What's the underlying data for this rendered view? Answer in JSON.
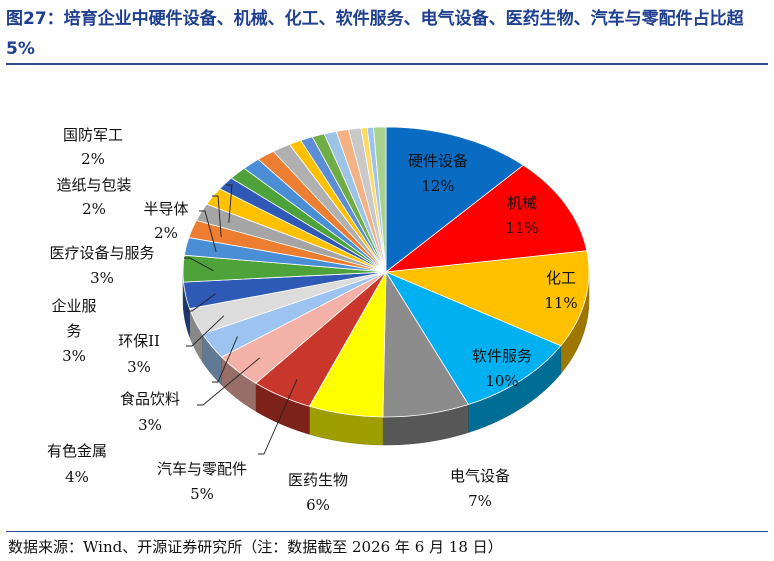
{
  "header": {
    "title": "图27：培育企业中硬件设备、机械、化工、软件服务、电气设备、医药生物、汽车与零配件占比超 5%"
  },
  "footer": {
    "source": "数据来源：Wind、开源证券研究所（注：数据截至 2026 年 6 月 18 日）"
  },
  "chart_data": {
    "type": "pie",
    "title": "",
    "style": "3d",
    "labeled_slices": [
      {
        "name": "硬件设备",
        "value": 12,
        "pct_label": "12%",
        "color": "#0a6bc2"
      },
      {
        "name": "机械",
        "value": 11,
        "pct_label": "11%",
        "color": "#ff0000"
      },
      {
        "name": "化工",
        "value": 11,
        "pct_label": "11%",
        "color": "#ffc000"
      },
      {
        "name": "软件服务",
        "value": 10,
        "pct_label": "10%",
        "color": "#00b0f0"
      },
      {
        "name": "电气设备",
        "value": 7,
        "pct_label": "7%",
        "color": "#8c8c8c"
      },
      {
        "name": "医药生物",
        "value": 6,
        "pct_label": "6%",
        "color": "#ffff00"
      },
      {
        "name": "汽车与零配件",
        "value": 5,
        "pct_label": "5%",
        "color": "#c9372c"
      },
      {
        "name": "有色金属",
        "value": 4,
        "pct_label": "4%",
        "color": "#f4b1a8"
      },
      {
        "name": "食品饮料",
        "value": 3,
        "pct_label": "3%",
        "color": "#9dc3f0"
      },
      {
        "name": "环保II",
        "value": 3,
        "pct_label": "3%",
        "color": "#dcdcdc"
      },
      {
        "name": "企业服务",
        "value": 3,
        "pct_label": "3%",
        "color": "#2e5ab5"
      },
      {
        "name": "医疗设备与服务",
        "value": 3,
        "pct_label": "3%",
        "color": "#4da33a"
      },
      {
        "name": "半导体",
        "value": 2,
        "pct_label": "2%",
        "color": "#4a8fd6"
      },
      {
        "name": "造纸与包装",
        "value": 2,
        "pct_label": "2%",
        "color": "#ed7d31"
      },
      {
        "name": "国防军工",
        "value": 2,
        "pct_label": "2%",
        "color": "#a5a5a5"
      }
    ],
    "unlabeled_slices": [
      {
        "value": 2,
        "color": "#ffc000"
      },
      {
        "value": 1.5,
        "color": "#2e5ab5"
      },
      {
        "value": 1.5,
        "color": "#4da33a"
      },
      {
        "value": 1.5,
        "color": "#4a8fd6"
      },
      {
        "value": 1.5,
        "color": "#ed7d31"
      },
      {
        "value": 1.5,
        "color": "#b0b0b0"
      },
      {
        "value": 1,
        "color": "#ffc000"
      },
      {
        "value": 1,
        "color": "#5b8ed6"
      },
      {
        "value": 1,
        "color": "#70ad47"
      },
      {
        "value": 1,
        "color": "#9dc3e6"
      },
      {
        "value": 1,
        "color": "#f4b183"
      },
      {
        "value": 1,
        "color": "#c9c9c9"
      },
      {
        "value": 0.5,
        "color": "#ffd966"
      },
      {
        "value": 0.5,
        "color": "#9dc3f0"
      },
      {
        "value": 1,
        "color": "#a9d18e"
      }
    ]
  }
}
